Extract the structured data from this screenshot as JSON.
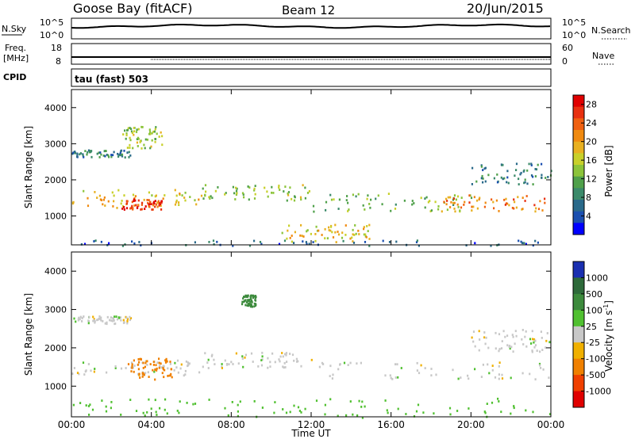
{
  "header": {
    "station": "Goose Bay (fitACF)",
    "beam": "Beam 12",
    "date": "20/Jun/2015"
  },
  "top_panels": {
    "nsky_label": "N.Sky",
    "nsearch_label": "N.Search",
    "nsky_ticks": [
      "10^5",
      "10^0"
    ],
    "nsearch_ticks": [
      "10^5",
      "10^0"
    ],
    "freq_label_1": "Freq.",
    "freq_label_2": "[MHz]",
    "freq_ticks": [
      "18",
      "8"
    ],
    "nave_label": "Nave",
    "nave_ticks": [
      "60",
      "0"
    ],
    "cpid_label": "CPID",
    "cpid_text": "tau (fast) 503"
  },
  "chart_data": [
    {
      "type": "heatmap",
      "title": "",
      "xlabel": "",
      "ylabel": "Slant Range [km]",
      "x_ticks": [
        "00:00",
        "04:00",
        "08:00",
        "12:00",
        "16:00",
        "20:00",
        "00:00"
      ],
      "xlim_hours": [
        0,
        24
      ],
      "y_ticks": [
        "1000",
        "2000",
        "3000",
        "4000"
      ],
      "ylim": [
        200,
        4500
      ],
      "colorbar": {
        "label": "Power [dB]",
        "ticks": [
          "4",
          "8",
          "12",
          "16",
          "20",
          "24",
          "28"
        ],
        "range": [
          0,
          30
        ],
        "colors": [
          "#0000ff",
          "#1b4fb0",
          "#2a6a8a",
          "#3b8a6a",
          "#4fa04a",
          "#8cc43a",
          "#c8d02a",
          "#e8b020",
          "#f08a10",
          "#f06010",
          "#e83010",
          "#e00000"
        ]
      },
      "features": [
        {
          "t0": 0.0,
          "t1": 6.5,
          "r0": 1250,
          "r1": 1750,
          "level": 18
        },
        {
          "t0": 2.5,
          "t1": 4.5,
          "r0": 1200,
          "r1": 1500,
          "level": 26
        },
        {
          "t0": 6.5,
          "t1": 12.0,
          "r0": 1450,
          "r1": 1900,
          "level": 14
        },
        {
          "t0": 12.0,
          "t1": 20.0,
          "r0": 1150,
          "r1": 1650,
          "level": 12
        },
        {
          "t0": 18.5,
          "t1": 24.0,
          "r0": 1150,
          "r1": 1600,
          "level": 22
        },
        {
          "t0": 10.5,
          "t1": 15.0,
          "r0": 300,
          "r1": 800,
          "level": 18
        },
        {
          "t0": 0.0,
          "t1": 3.0,
          "r0": 2650,
          "r1": 2850,
          "level": 8
        },
        {
          "t0": 2.5,
          "t1": 4.5,
          "r0": 2900,
          "r1": 3500,
          "level": 14
        },
        {
          "t0": 20.0,
          "t1": 24.0,
          "r0": 1900,
          "r1": 2500,
          "level": 8
        },
        {
          "t0": 0.0,
          "t1": 24.0,
          "r0": 200,
          "r1": 350,
          "level": 6
        }
      ]
    },
    {
      "type": "heatmap",
      "title": "",
      "xlabel": "Time UT",
      "ylabel": "Slant Range [km]",
      "x_ticks": [
        "00:00",
        "04:00",
        "08:00",
        "12:00",
        "16:00",
        "20:00",
        "00:00"
      ],
      "xlim_hours": [
        0,
        24
      ],
      "y_ticks": [
        "1000",
        "2000",
        "3000",
        "4000"
      ],
      "ylim": [
        200,
        4500
      ],
      "colorbar": {
        "label": "Velocity [m s^-1]",
        "ticks": [
          "1000",
          "500",
          "100",
          "25",
          "-25",
          "-100",
          "-500",
          "-1000"
        ],
        "colors": [
          "#1a2fb0",
          "#2e6a3a",
          "#3c8a3c",
          "#50c030",
          "#c8c8c8",
          "#f0b000",
          "#f08000",
          "#f04000",
          "#e00000"
        ]
      },
      "features": [
        {
          "t0": 0.0,
          "t1": 6.5,
          "r0": 1300,
          "r1": 1700,
          "level": 0
        },
        {
          "t0": 6.5,
          "t1": 12.0,
          "r0": 1500,
          "r1": 1900,
          "level": 0
        },
        {
          "t0": 12.0,
          "t1": 24.0,
          "r0": 1200,
          "r1": 1650,
          "level": 0
        },
        {
          "t0": 2.8,
          "t1": 5.0,
          "r0": 1200,
          "r1": 1750,
          "level": -300
        },
        {
          "t0": 0.0,
          "t1": 3.0,
          "r0": 2650,
          "r1": 2850,
          "level": 0
        },
        {
          "t0": 8.5,
          "t1": 9.2,
          "r0": 3100,
          "r1": 3400,
          "level": 150
        },
        {
          "t0": 20.0,
          "t1": 24.0,
          "r0": 1900,
          "r1": 2500,
          "level": 0
        },
        {
          "t0": 0.0,
          "t1": 24.0,
          "r0": 200,
          "r1": 700,
          "level": 60
        }
      ]
    }
  ]
}
